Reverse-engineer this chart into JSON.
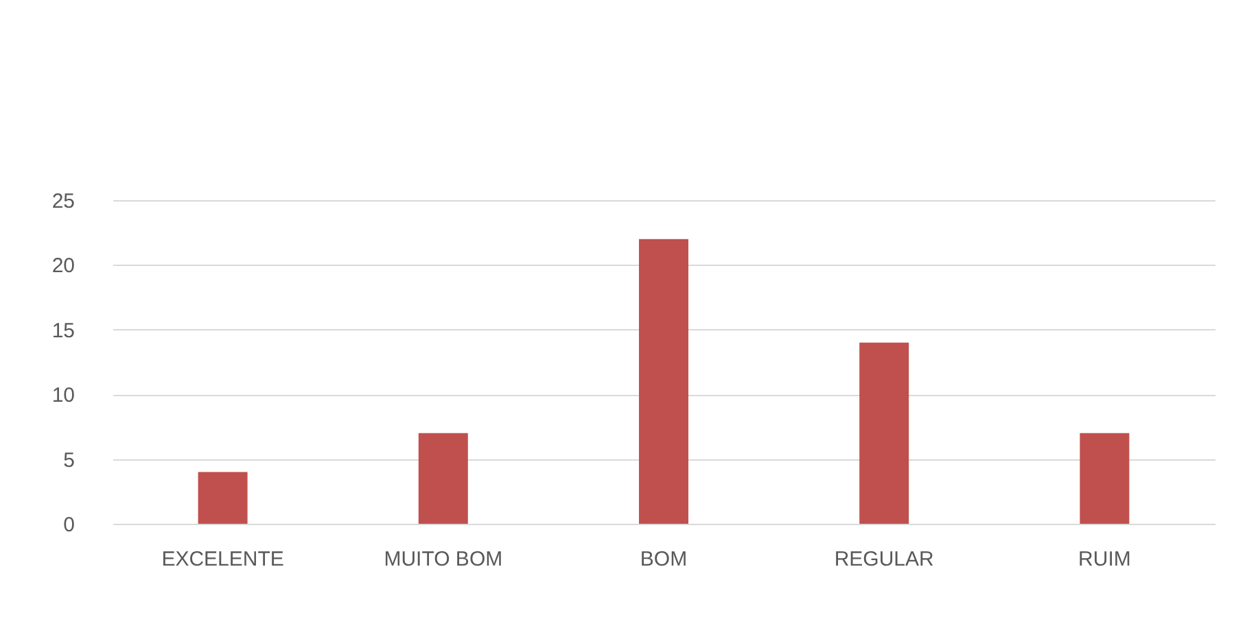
{
  "chart_data": {
    "type": "bar",
    "categories": [
      "EXCELENTE",
      "MUITO BOM",
      "BOM",
      "REGULAR",
      "RUIM"
    ],
    "values": [
      4,
      7,
      22,
      14,
      7
    ],
    "color": "#c0504d",
    "ylim": [
      0,
      25
    ],
    "yticks": [
      0,
      5,
      10,
      15,
      20,
      25
    ],
    "grid": "y"
  }
}
